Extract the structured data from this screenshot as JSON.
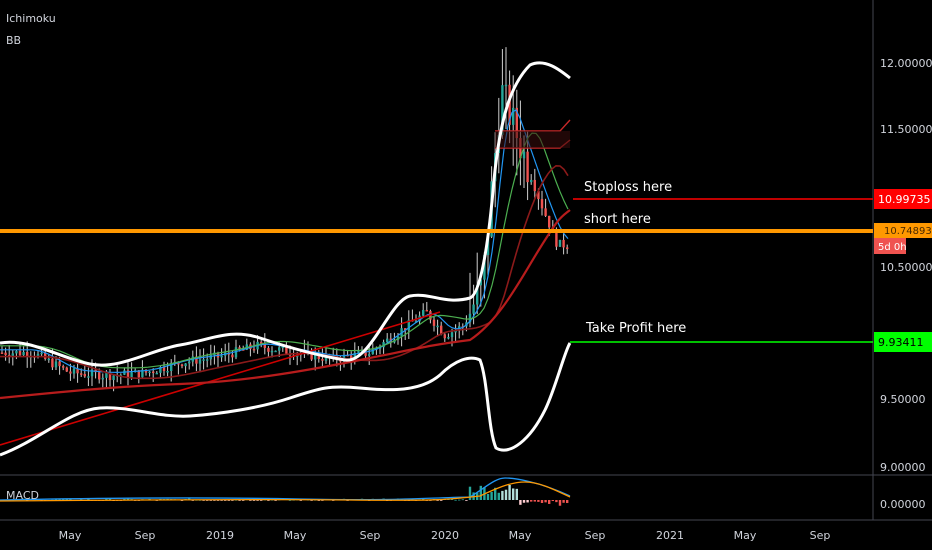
{
  "indicators": {
    "ichimoku": "Ichimoku",
    "bb": "BB",
    "macd": "MACD"
  },
  "annotations": {
    "stoploss": "Stoploss here",
    "short": "short here",
    "take_profit": "Take Profit here"
  },
  "price_tags": {
    "stoploss": "10.99735",
    "entry": "10.74893",
    "countdown": "5d 0h",
    "take_profit": "9.93411"
  },
  "colors": {
    "background": "#000000",
    "stoploss_line": "#ff0000",
    "entry_line": "#ff9800",
    "take_profit_line": "#00ff00",
    "up_candle": "#26a69a",
    "down_candle": "#ef5350",
    "bollinger": "#ffffff",
    "trendline": "#cc0000",
    "ma_long": "#b71c1c"
  },
  "chart_data": {
    "type": "candlestick",
    "y_axis": {
      "ticks": [
        "12.00000",
        "11.50000",
        "10.50000",
        "9.50000",
        "9.00000"
      ],
      "macd_tick": "0.00000",
      "range": [
        8.95,
        12.5
      ]
    },
    "x_axis": {
      "ticks": [
        "May",
        "Sep",
        "2019",
        "May",
        "Sep",
        "2020",
        "May",
        "Sep",
        "2021",
        "May",
        "Sep"
      ]
    },
    "levels": {
      "stoploss": 10.99735,
      "entry": 10.74893,
      "take_profit": 9.93411
    },
    "price_path_approx": [
      [
        "2018-03",
        9.85
      ],
      [
        "2018-05",
        9.7
      ],
      [
        "2018-07",
        9.68
      ],
      [
        "2018-09",
        9.7
      ],
      [
        "2018-11",
        9.78
      ],
      [
        "2019-01",
        9.82
      ],
      [
        "2019-03",
        9.9
      ],
      [
        "2019-05",
        9.85
      ],
      [
        "2019-07",
        9.8
      ],
      [
        "2019-09",
        9.85
      ],
      [
        "2019-11",
        10.05
      ],
      [
        "2019-12",
        10.15
      ],
      [
        "2020-01",
        9.98
      ],
      [
        "2020-02",
        10.05
      ],
      [
        "2020-03",
        10.35
      ],
      [
        "2020-04",
        11.8
      ],
      [
        "2020-05",
        11.4
      ],
      [
        "2020-06",
        11.0
      ],
      [
        "2020-07",
        10.65
      ]
    ]
  }
}
